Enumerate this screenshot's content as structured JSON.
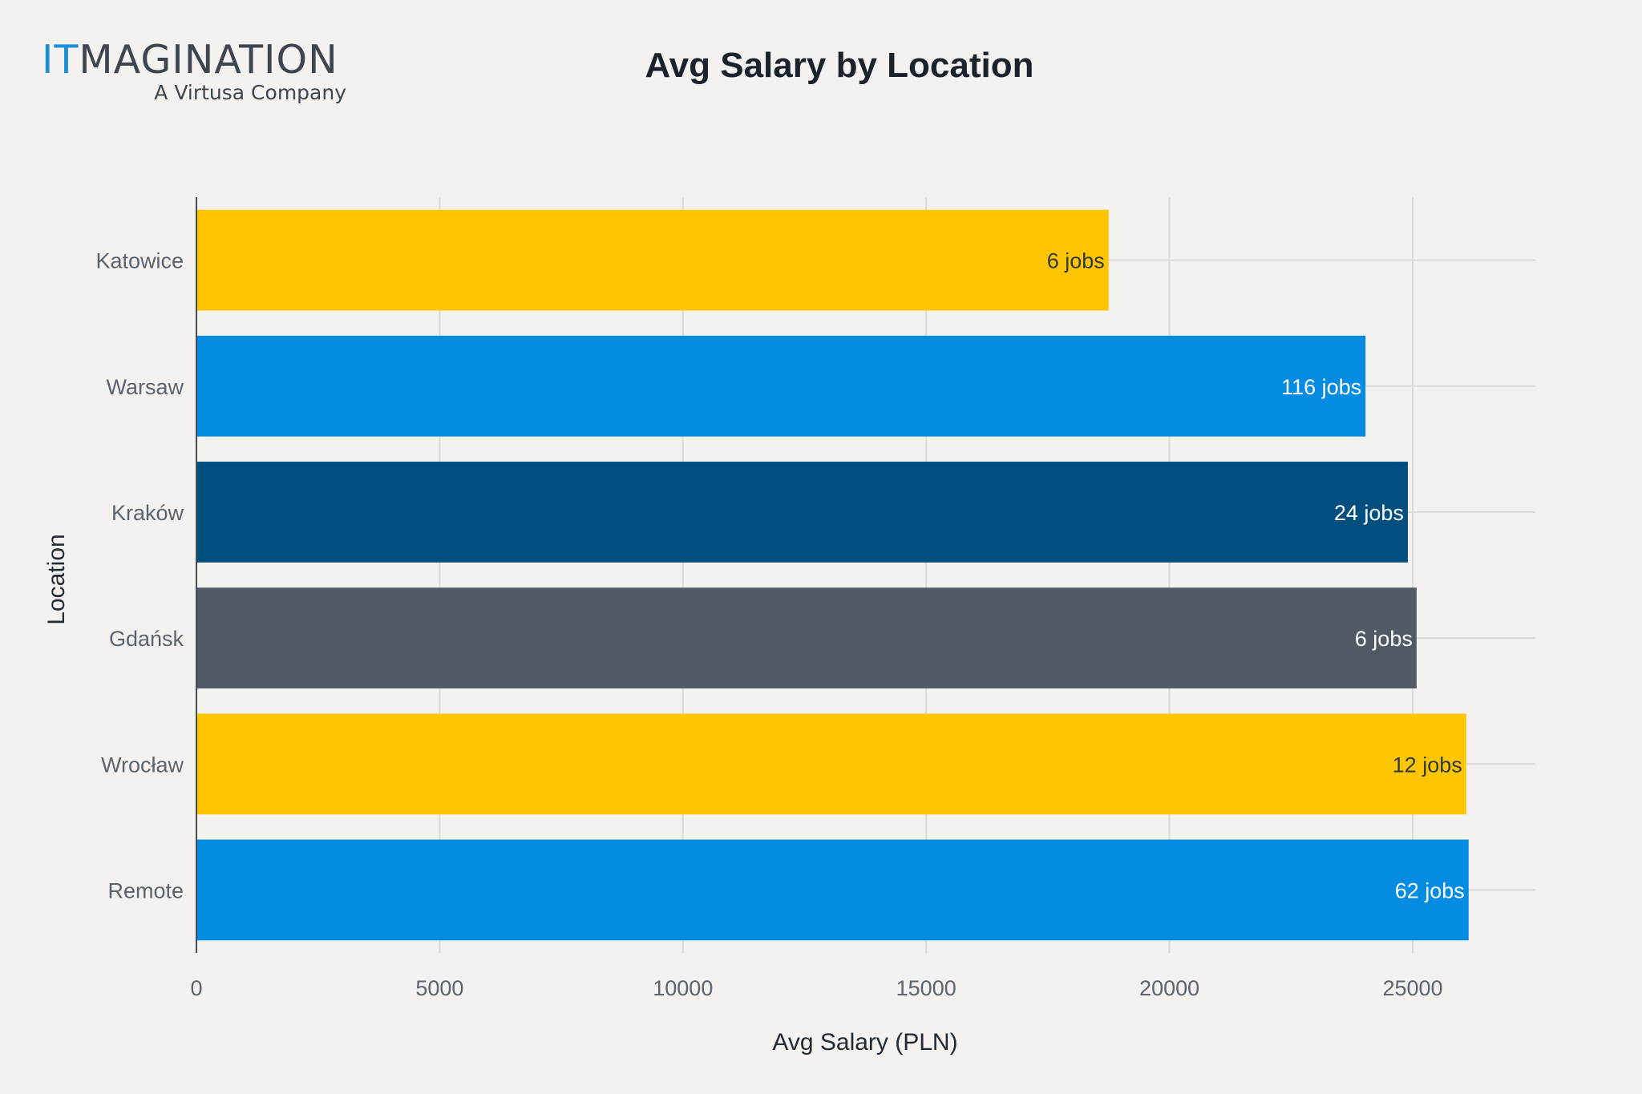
{
  "logo": {
    "accent": "IT",
    "main": "MAGINATION",
    "tagline": "A Virtusa Company"
  },
  "chart_data": {
    "type": "bar",
    "orientation": "horizontal",
    "title": "Avg Salary by Location",
    "xlabel": "Avg Salary (PLN)",
    "ylabel": "Location",
    "xlim": [
      0,
      27500
    ],
    "xticks": [
      0,
      5000,
      10000,
      15000,
      20000,
      25000
    ],
    "grid": true,
    "categories": [
      "Katowice",
      "Warsaw",
      "Kraków",
      "Gdańsk",
      "Wrocław",
      "Remote"
    ],
    "values": [
      18750,
      24030,
      24900,
      25080,
      26100,
      26150
    ],
    "data_labels": [
      "6 jobs",
      "116 jobs",
      "24 jobs",
      "6 jobs",
      "12 jobs",
      "62 jobs"
    ],
    "colors": [
      "#ffc500",
      "#048be2",
      "#004f7f",
      "#515a64",
      "#ffc500",
      "#048be2"
    ],
    "label_colors": [
      "#2f3a44",
      "#ffffff",
      "#ffffff",
      "#ffffff",
      "#2f3a44",
      "#ffffff"
    ]
  }
}
